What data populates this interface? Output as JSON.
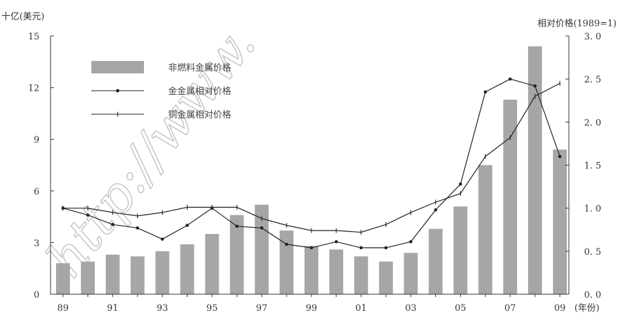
{
  "chart_data": {
    "type": "bar",
    "categories": [
      "89",
      "90",
      "91",
      "92",
      "93",
      "94",
      "95",
      "96",
      "97",
      "98",
      "99",
      "00",
      "01",
      "02",
      "03",
      "04",
      "05",
      "06",
      "07",
      "08",
      "09"
    ],
    "x_tick_labels": [
      "89",
      "91",
      "93",
      "95",
      "97",
      "99",
      "01",
      "03",
      "05",
      "07",
      "09"
    ],
    "x_unit": "(年份)",
    "y_left_label": "十亿(美元)",
    "y_right_label": "相对价格(1989=1)",
    "y_left_ticks": [
      "0",
      "3",
      "6",
      "9",
      "12",
      "15"
    ],
    "y_right_ticks": [
      "0. 0",
      "0. 5",
      "1. 0",
      "1. 5",
      "2. 0",
      "2. 5",
      "3. 0"
    ],
    "ylim_left": [
      0,
      15
    ],
    "ylim_right": [
      0,
      3
    ],
    "legend_position": "top-left",
    "grid": false,
    "series": [
      {
        "name": "非燃料金属价格",
        "kind": "bar",
        "axis": "left",
        "color": "#a6a6a6",
        "values": [
          1.8,
          1.9,
          2.3,
          2.2,
          2.5,
          2.9,
          3.5,
          4.6,
          5.2,
          3.7,
          2.8,
          2.6,
          2.2,
          1.9,
          2.4,
          3.8,
          5.1,
          7.5,
          11.3,
          14.4,
          8.4
        ]
      },
      {
        "name": "金金属相对价格",
        "kind": "line",
        "axis": "right",
        "color": "#222222",
        "values": [
          1.0,
          0.92,
          0.81,
          0.77,
          0.64,
          0.8,
          1.0,
          0.79,
          0.77,
          0.58,
          0.54,
          0.61,
          0.54,
          0.54,
          0.61,
          0.98,
          1.28,
          2.35,
          2.5,
          2.42,
          1.6
        ]
      },
      {
        "name": "铜金属相对价格",
        "kind": "line",
        "axis": "right",
        "color": "#222222",
        "values": [
          1.0,
          1.0,
          0.95,
          0.91,
          0.95,
          1.01,
          1.01,
          1.01,
          0.88,
          0.8,
          0.74,
          0.74,
          0.72,
          0.81,
          0.95,
          1.07,
          1.17,
          1.6,
          1.82,
          2.3,
          2.45
        ]
      }
    ]
  },
  "colors": {
    "bar": "#a6a6a6",
    "line": "#222222",
    "axis": "#333333",
    "watermark": "#b8b8b8"
  },
  "watermark": "http://www."
}
